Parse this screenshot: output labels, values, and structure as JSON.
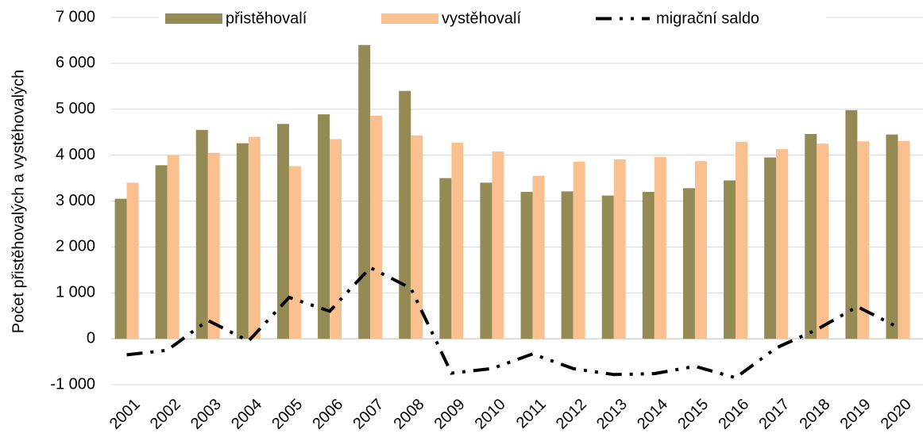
{
  "chart_data": {
    "type": "bar_line",
    "y_label": "Počet přistěhovalých a vystěhovalých",
    "categories": [
      "2001",
      "2002",
      "2003",
      "2004",
      "2005",
      "2006",
      "2007",
      "2008",
      "2009",
      "2010",
      "2011",
      "2012",
      "2013",
      "2014",
      "2015",
      "2016",
      "2017",
      "2018",
      "2019",
      "2020"
    ],
    "series": [
      {
        "name": "přistěhovalí",
        "type": "bar",
        "color": "#948a54",
        "values": [
          3050,
          3780,
          4550,
          4260,
          4680,
          4890,
          6400,
          5400,
          3500,
          3400,
          3200,
          3210,
          3120,
          3200,
          3280,
          3450,
          3950,
          4460,
          4980,
          4450
        ]
      },
      {
        "name": "vystěhovalí",
        "type": "bar",
        "color": "#fac090",
        "values": [
          3400,
          4000,
          4050,
          4400,
          3760,
          4350,
          4860,
          4430,
          4270,
          4080,
          3550,
          3860,
          3910,
          3960,
          3870,
          4290,
          4130,
          4250,
          4300,
          4310
        ]
      },
      {
        "name": "migrační saldo",
        "type": "line",
        "color": "#000000",
        "values": [
          -350,
          -250,
          400,
          -50,
          900,
          600,
          1550,
          1100,
          -750,
          -650,
          -330,
          -650,
          -780,
          -760,
          -600,
          -850,
          -200,
          200,
          700,
          250
        ]
      }
    ],
    "ylim": [
      -1000,
      7000
    ],
    "yticks": [
      {
        "value": -1000,
        "label": "-1 000"
      },
      0,
      {
        "value": 1000,
        "label": "1 000"
      },
      {
        "value": 2000,
        "label": "2 000"
      },
      {
        "value": 3000,
        "label": "3 000"
      },
      {
        "value": 4000,
        "label": "4 000"
      },
      {
        "value": 5000,
        "label": "5 000"
      },
      {
        "value": 6000,
        "label": "6 000"
      },
      {
        "value": 7000,
        "label": "7 000"
      }
    ],
    "grid": true,
    "legend": "top"
  }
}
